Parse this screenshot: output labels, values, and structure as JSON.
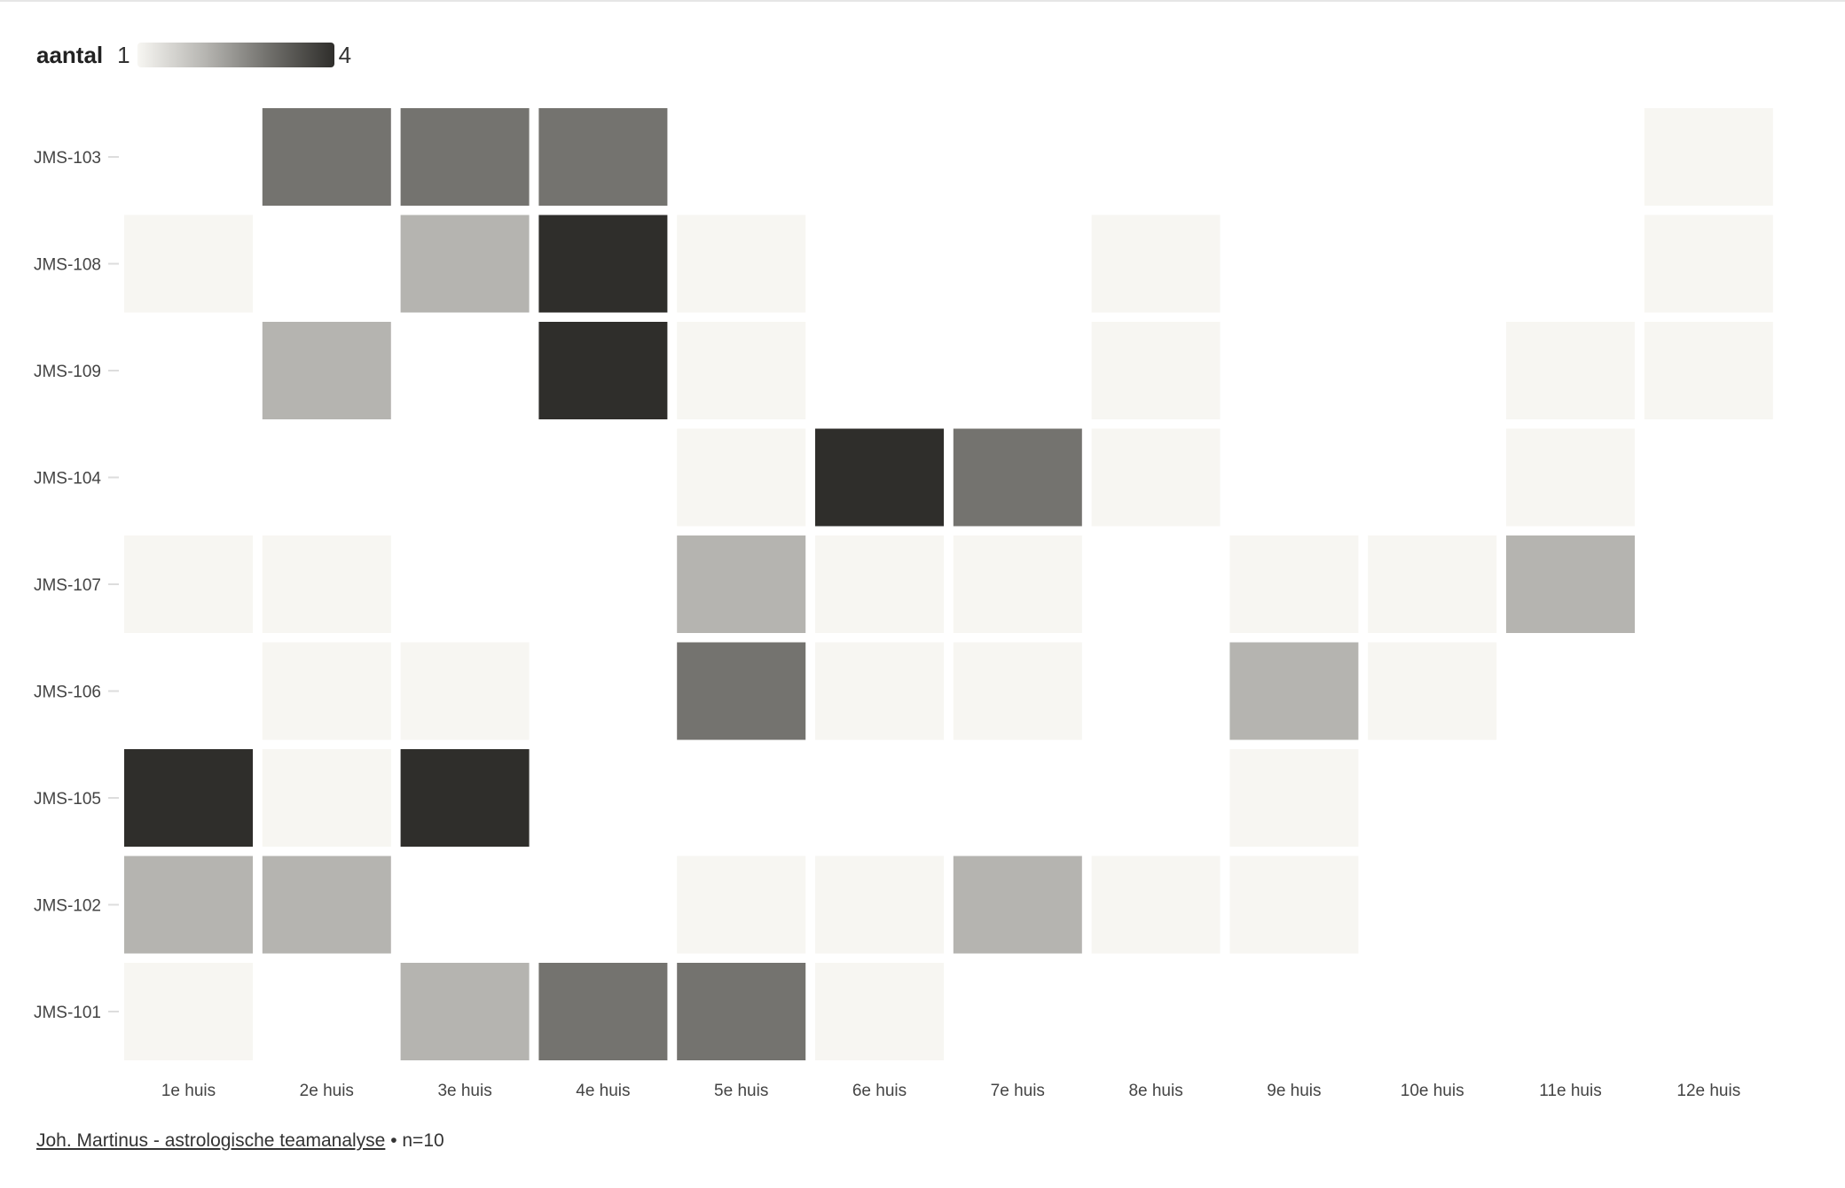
{
  "legend": {
    "title": "aantal",
    "min_label": "1",
    "max_label": "4"
  },
  "colors": {
    "scale": [
      "#f7f6f2",
      "#b5b4b0",
      "#74736f",
      "#2f2e2b"
    ],
    "tick": "#dddddd",
    "text": "#444444"
  },
  "chart_data": {
    "type": "heatmap",
    "title": "",
    "xlabel": "",
    "ylabel": "",
    "x_categories": [
      "1e huis",
      "2e huis",
      "3e huis",
      "4e huis",
      "5e huis",
      "6e huis",
      "7e huis",
      "8e huis",
      "9e huis",
      "10e huis",
      "11e huis",
      "12e huis"
    ],
    "y_categories": [
      "JMS-103",
      "JMS-108",
      "JMS-109",
      "JMS-104",
      "JMS-107",
      "JMS-106",
      "JMS-105",
      "JMS-102",
      "JMS-101"
    ],
    "values": [
      [
        null,
        3,
        3,
        3,
        null,
        null,
        null,
        null,
        null,
        null,
        null,
        1
      ],
      [
        1,
        null,
        2,
        4,
        1,
        null,
        null,
        1,
        null,
        null,
        null,
        1
      ],
      [
        null,
        2,
        null,
        4,
        1,
        null,
        null,
        1,
        null,
        null,
        1,
        1
      ],
      [
        null,
        null,
        null,
        null,
        1,
        4,
        3,
        1,
        null,
        null,
        1,
        null
      ],
      [
        1,
        1,
        null,
        null,
        2,
        1,
        1,
        null,
        1,
        1,
        2,
        null
      ],
      [
        null,
        1,
        1,
        null,
        3,
        1,
        1,
        null,
        2,
        1,
        null,
        null
      ],
      [
        4,
        1,
        4,
        null,
        null,
        null,
        null,
        null,
        1,
        null,
        null,
        null
      ],
      [
        2,
        2,
        null,
        null,
        1,
        1,
        2,
        1,
        1,
        null,
        null,
        null
      ],
      [
        1,
        null,
        2,
        3,
        3,
        1,
        null,
        null,
        null,
        null,
        null,
        null
      ]
    ],
    "color_range": [
      1,
      4
    ],
    "grid": false,
    "legend_placement": "top-left"
  },
  "footer": {
    "link_text": "Joh. Martinus - astrologische teamanalyse",
    "note": " • n=10"
  }
}
